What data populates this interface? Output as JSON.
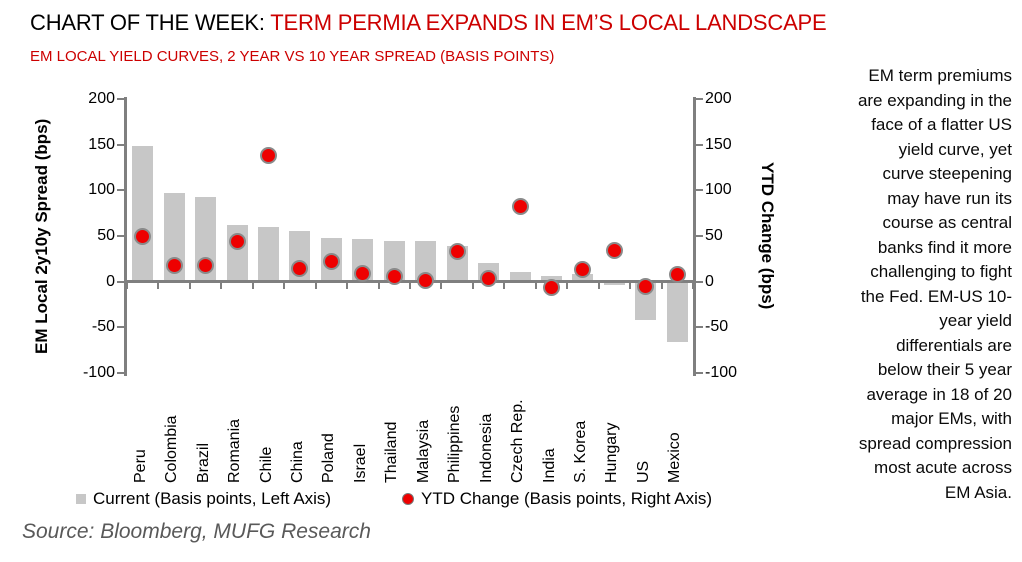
{
  "title": {
    "prefix": "CHART OF THE WEEK: ",
    "highlight": "TERM PERMIA EXPANDS IN EM’S LOCAL LANDSCAPE"
  },
  "subtitle": "EM LOCAL YIELD CURVES, 2 YEAR VS 10 YEAR SPREAD (BASIS POINTS)",
  "source": "Source: Bloomberg, MUFG Research",
  "commentary_lines": [
    "EM term premiums",
    "are expanding in the",
    "face of a flatter US",
    "yield curve, yet",
    "curve steepening",
    "may have run its",
    "course as central",
    "banks find it more",
    "challenging to fight",
    "the Fed. EM-US 10-",
    "year yield",
    "differentials are",
    "below their 5 year",
    "average in 18 of 20",
    "major EMs, with",
    "spread compression",
    "most acute across",
    "EM Asia."
  ],
  "legend": [
    {
      "label": "Current (Basis points, Left Axis)",
      "marker": "square",
      "color": "#C7C7C7"
    },
    {
      "label": "YTD Change (Basis points, Right Axis)",
      "marker": "circle",
      "color": "#EE0000"
    }
  ],
  "colors": {
    "accent_red": "#CC0000",
    "bar_gray": "#C7C7C7",
    "dot_red": "#EE0000",
    "axis_gray": "#7F7F7F",
    "source_gray": "#595959"
  },
  "chart_data": {
    "type": "bar",
    "subtype": "bar-with-scatter-overlay",
    "categories": [
      "Peru",
      "Colombia",
      "Brazil",
      "Romania",
      "Chile",
      "China",
      "Poland",
      "Israel",
      "Thailand",
      "Malaysia",
      "Philippines",
      "Indonesia",
      "Czech Rep.",
      "India",
      "S. Korea",
      "Hungary",
      "US",
      "Mexico"
    ],
    "series": [
      {
        "name": "Current (Basis points, Left Axis)",
        "type": "bar",
        "axis": "left",
        "values": [
          148,
          97,
          93,
          62,
          60,
          55,
          48,
          47,
          45,
          44,
          39,
          20,
          11,
          6,
          8,
          -4,
          -42,
          -66
        ]
      },
      {
        "name": "YTD Change (Basis points, Right Axis)",
        "type": "scatter",
        "axis": "right",
        "values": [
          50,
          18,
          18,
          44,
          138,
          14,
          22,
          9,
          6,
          1,
          33,
          3,
          82,
          -6,
          13,
          34,
          -5,
          8
        ]
      }
    ],
    "left_axis": {
      "label": "EM Local 2y10y Spread (bps)",
      "min": -100,
      "max": 200,
      "ticks": [
        200,
        150,
        100,
        50,
        0,
        -50,
        -100
      ]
    },
    "right_axis": {
      "label": "YTD Change (bps)",
      "min": -100,
      "max": 200,
      "ticks": [
        200,
        150,
        100,
        50,
        0,
        -50,
        -100
      ]
    },
    "grid": false,
    "legend_position": "bottom"
  }
}
